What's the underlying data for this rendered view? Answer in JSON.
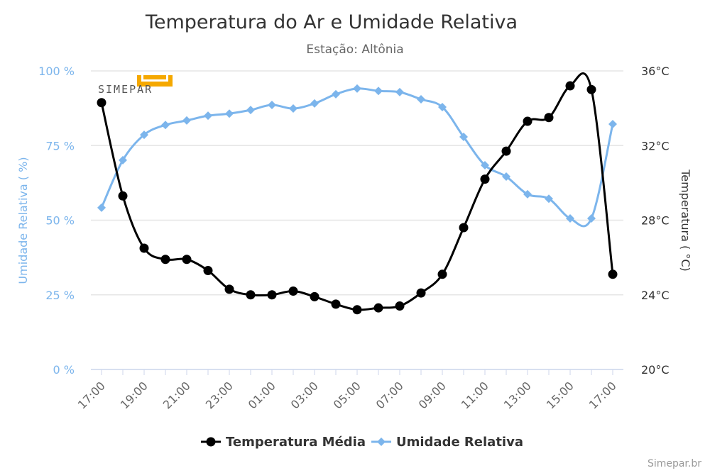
{
  "chart_data": {
    "type": "line",
    "title": "Temperatura do Ar e Umidade Relativa",
    "subtitle": "Estação: Altônia",
    "categories": [
      "17:00",
      "18:00",
      "19:00",
      "20:00",
      "21:00",
      "22:00",
      "23:00",
      "00:00",
      "01:00",
      "02:00",
      "03:00",
      "04:00",
      "05:00",
      "06:00",
      "07:00",
      "08:00",
      "09:00",
      "10:00",
      "11:00",
      "12:00",
      "13:00",
      "14:00",
      "15:00",
      "16:00",
      "17:00"
    ],
    "x_tick_labels": [
      "17:00",
      "19:00",
      "21:00",
      "23:00",
      "01:00",
      "03:00",
      "05:00",
      "07:00",
      "09:00",
      "11:00",
      "13:00",
      "15:00",
      "17:00"
    ],
    "series": [
      {
        "name": "Temperatura Média",
        "axis": "right",
        "color": "#000000",
        "marker": "circle",
        "values": [
          34.3,
          29.3,
          26.5,
          25.9,
          25.9,
          25.3,
          24.3,
          24.0,
          24.0,
          24.2,
          23.9,
          23.5,
          23.2,
          23.3,
          23.4,
          24.1,
          25.1,
          27.6,
          30.2,
          31.7,
          33.3,
          33.5,
          35.2,
          35.0,
          25.1
        ]
      },
      {
        "name": "Umidade Relativa",
        "axis": "left",
        "color": "#7cb5ec",
        "marker": "diamond",
        "values": [
          54.2,
          70.1,
          78.6,
          81.9,
          83.4,
          85.0,
          85.7,
          86.9,
          88.6,
          87.4,
          89.1,
          92.2,
          94.1,
          93.3,
          92.9,
          90.5,
          87.9,
          77.9,
          68.4,
          64.6,
          58.7,
          57.2,
          50.6,
          50.6,
          82.2
        ]
      }
    ],
    "y_left": {
      "label": "Umidade Relativa ( %)",
      "range": [
        0,
        100
      ],
      "ticks": [
        "0 %",
        "25 %",
        "50 %",
        "75 %",
        "100 %"
      ]
    },
    "y_right": {
      "label": "Temperatura ( °C)",
      "range": [
        20,
        36
      ],
      "ticks": [
        "20°C",
        "24°C",
        "28°C",
        "32°C",
        "36°C"
      ]
    },
    "grid": true,
    "legend_position": "bottom"
  },
  "logo_text": "SIMEPAR",
  "credit": "Simepar.br"
}
